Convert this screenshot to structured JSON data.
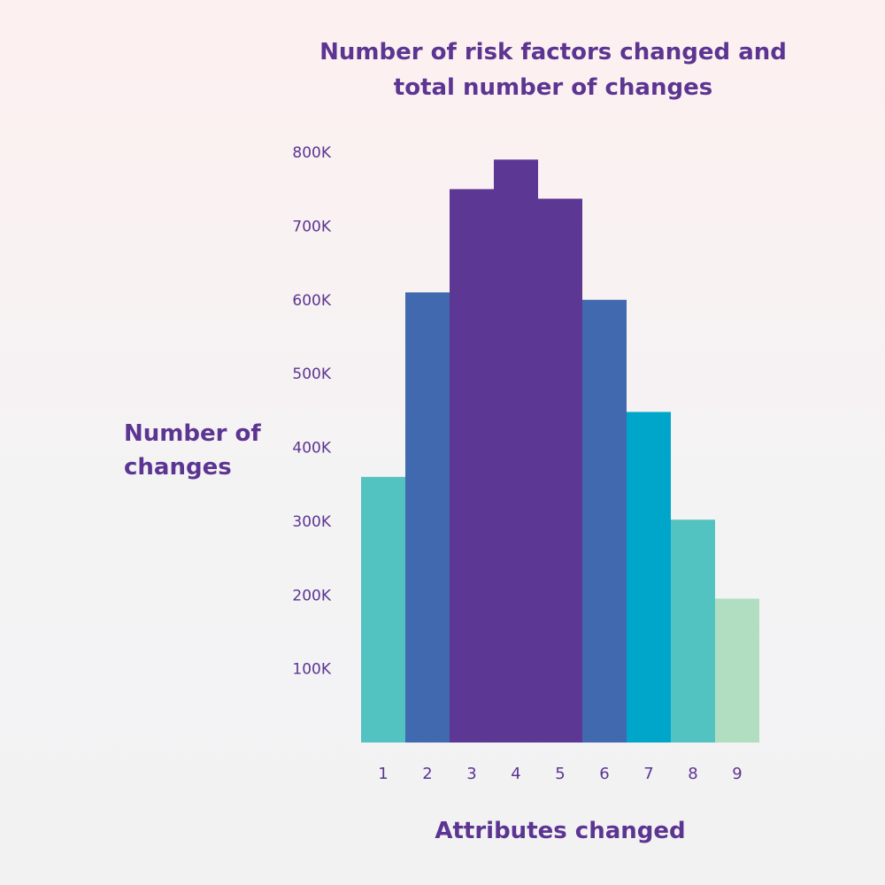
{
  "chart_data": {
    "type": "bar",
    "title_lines": [
      "Number of risk factors changed and",
      "total number of changes"
    ],
    "ylabel_lines": [
      "Number of",
      "changes"
    ],
    "xlabel": "Attributes changed",
    "categories": [
      "1",
      "2",
      "3",
      "4",
      "5",
      "6",
      "7",
      "8",
      "9"
    ],
    "values": [
      360000,
      610000,
      750000,
      790000,
      737000,
      600000,
      448000,
      302000,
      195000
    ],
    "colors": [
      "#52c3c0",
      "#4169b0",
      "#5c3794",
      "#5c3794",
      "#5c3794",
      "#4169b0",
      "#00a6ca",
      "#52c3c0",
      "#b1dec0"
    ],
    "ylim": [
      0,
      800000
    ],
    "yticks": [
      {
        "value": 100000,
        "label": "100K"
      },
      {
        "value": 200000,
        "label": "200K"
      },
      {
        "value": 300000,
        "label": "300K"
      },
      {
        "value": 400000,
        "label": "400K"
      },
      {
        "value": 500000,
        "label": "500K"
      },
      {
        "value": 600000,
        "label": "600K"
      },
      {
        "value": 700000,
        "label": "700K"
      },
      {
        "value": 800000,
        "label": "800K"
      }
    ],
    "grid": false,
    "legend": "none"
  }
}
